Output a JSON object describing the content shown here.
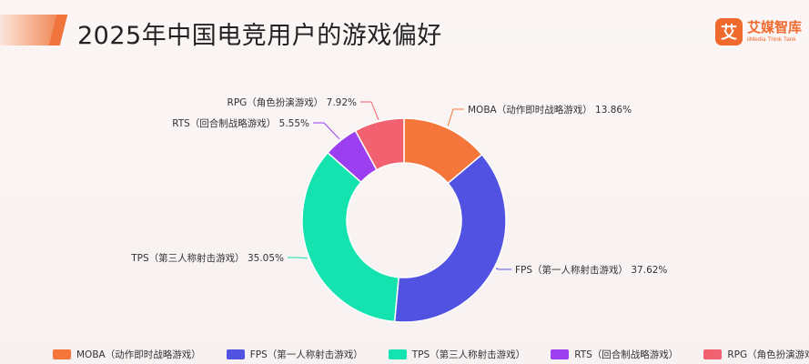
{
  "header": {
    "title": "2025年中国电竞用户的游戏偏好"
  },
  "logo": {
    "mark": "艾",
    "name_cn": "艾媒智库",
    "name_en": "iiMedia Think Tank"
  },
  "chart_data": {
    "type": "pie",
    "donut": true,
    "series": [
      {
        "name": "MOBA（动作即时战略游戏）",
        "value": 13.86,
        "label": "13.86%",
        "color": "#f5763a"
      },
      {
        "name": "FPS（第一人称射击游戏）",
        "value": 37.62,
        "label": "37.62%",
        "color": "#5151e2"
      },
      {
        "name": "TPS（第三人称射击游戏）",
        "value": 35.05,
        "label": "35.05%",
        "color": "#14e3b0"
      },
      {
        "name": "RTS（回合制战略游戏）",
        "value": 5.55,
        "label": "5.55%",
        "color": "#9b3ff0"
      },
      {
        "name": "RPG（角色扮演游戏）",
        "value": 7.92,
        "label": "7.92%",
        "color": "#f2616f"
      }
    ],
    "legend_position": "bottom"
  }
}
